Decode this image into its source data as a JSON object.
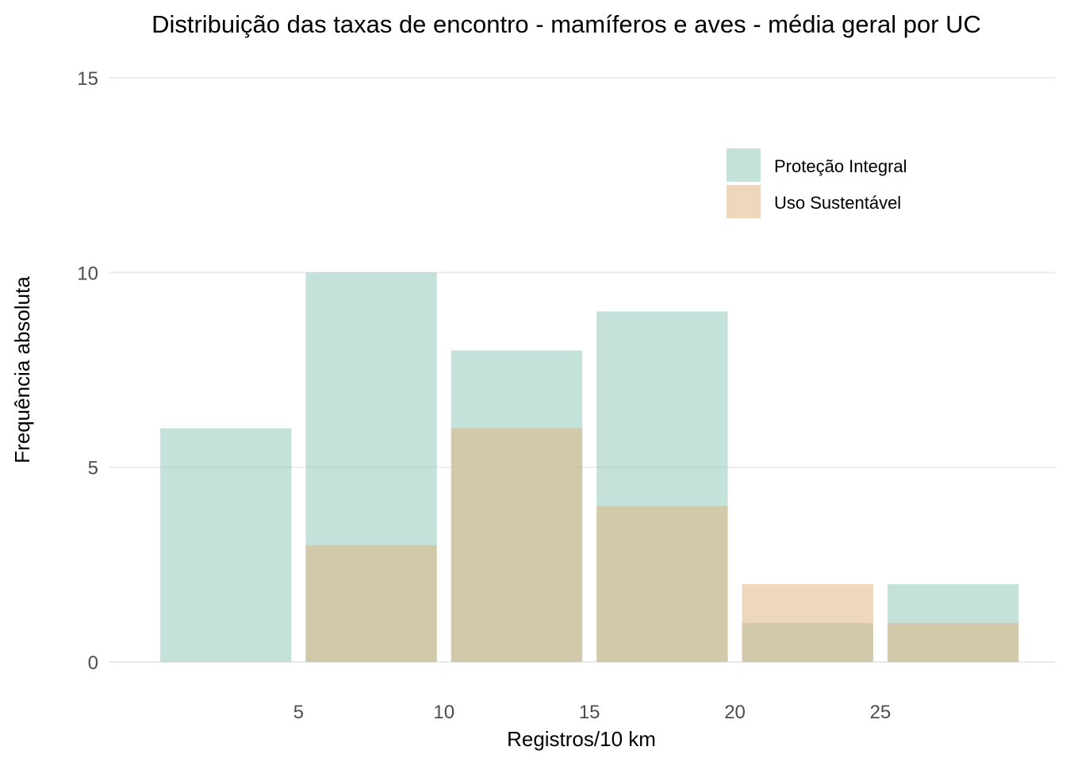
{
  "chart_data": {
    "type": "bar",
    "title": "Distribuição das taxas de encontro - mamíferos e aves - média geral por UC",
    "xlabel": "Registros/10 km",
    "ylabel": "Frequência absoluta",
    "xlim": [
      -1.5,
      31
    ],
    "ylim": [
      0,
      15
    ],
    "x_ticks": [
      5,
      10,
      15,
      20,
      25
    ],
    "y_ticks": [
      0,
      5,
      10,
      15
    ],
    "grid": "horizontal",
    "legend_position": "top-right",
    "bins": [
      [
        0,
        5
      ],
      [
        5,
        10
      ],
      [
        10,
        15
      ],
      [
        15,
        20
      ],
      [
        20,
        25
      ],
      [
        25,
        30
      ]
    ],
    "series": [
      {
        "name": "Proteção Integral",
        "color": "#8fc7b8",
        "opacity": 0.52,
        "values": [
          6,
          10,
          8,
          9,
          1,
          2
        ]
      },
      {
        "name": "Uso Sustentável",
        "color": "#dfb27e",
        "opacity": 0.52,
        "values": [
          0,
          3,
          6,
          4,
          2,
          1
        ]
      }
    ]
  }
}
